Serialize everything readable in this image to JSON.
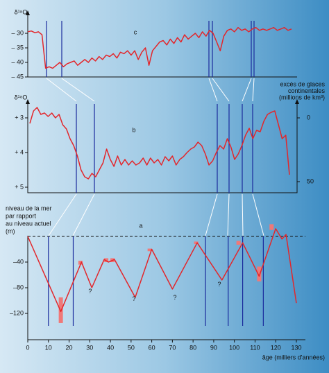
{
  "chart_data": [
    {
      "type": "line",
      "label": "c",
      "ylabel": "δ¹⁸O",
      "color": "#e3262b",
      "ylim": [
        -45,
        -25.7
      ],
      "yticks": [
        {
          "value": -30,
          "label": "– 30"
        },
        {
          "value": -35,
          "label": "– 35"
        },
        {
          "value": -40,
          "label": "– 40"
        },
        {
          "value": -45,
          "label": "– 45"
        }
      ],
      "values": [
        -29.5,
        -29.2,
        -29.8,
        -29.5,
        -30.5,
        -42,
        -41.5,
        -42,
        -41,
        -40,
        -41.5,
        -40.5,
        -40,
        -39.5,
        -41,
        -40,
        -39,
        -40,
        -38.5,
        -39.5,
        -38,
        -39,
        -37.5,
        -38,
        -37,
        -38.5,
        -36.5,
        -37,
        -36,
        -37.5,
        -36,
        -39,
        -36.5,
        -35,
        -41,
        -36,
        -34.5,
        -33,
        -32.5,
        -34,
        -32,
        -33.5,
        -31.5,
        -33,
        -30.5,
        -32,
        -31,
        -30,
        -31.5,
        -29.5,
        -31,
        -29,
        -30,
        -33,
        -36,
        -31,
        -29,
        -28.5,
        -29.5,
        -28,
        -29,
        -28.5,
        -29.5,
        -28.5,
        -28,
        -29,
        -28.5,
        -29,
        -28.5,
        -28,
        -29,
        -28.5,
        -28,
        -29,
        -28.5
      ]
    },
    {
      "type": "line",
      "label": "b",
      "ylabel": "δ¹⁸O",
      "color": "#e3262b",
      "ylim": [
        5.16,
        2.5
      ],
      "yticks": [
        {
          "value": 3,
          "label": "+ 3"
        },
        {
          "value": 4,
          "label": "+ 4"
        },
        {
          "value": 5,
          "label": "+ 5"
        }
      ],
      "y2label": [
        "excès de glaces",
        "continentales",
        "(millions de km³)"
      ],
      "y2lim": [
        58.7,
        -13.6
      ],
      "y2ticks": [
        0,
        50
      ],
      "values": [
        3.16,
        2.8,
        2.7,
        2.9,
        2.86,
        2.96,
        2.86,
        3.0,
        2.9,
        3.2,
        3.32,
        3.6,
        3.8,
        4.1,
        4.5,
        4.7,
        4.76,
        4.6,
        4.7,
        4.5,
        4.3,
        3.9,
        4.2,
        4.4,
        4.1,
        4.36,
        4.2,
        4.36,
        4.24,
        4.36,
        4.3,
        4.16,
        4.36,
        4.16,
        4.3,
        4.2,
        4.36,
        4.12,
        4.24,
        4.1,
        4.36,
        4.2,
        4.12,
        4.0,
        3.9,
        3.84,
        3.7,
        3.8,
        4.04,
        4.36,
        4.24,
        4.0,
        3.8,
        3.9,
        3.6,
        3.84,
        4.2,
        4.04,
        3.8,
        3.5,
        3.3,
        3.6,
        3.36,
        3.4,
        3.1,
        2.9,
        2.84,
        2.8,
        3.2,
        3.6,
        3.5,
        4.64
      ]
    },
    {
      "type": "line",
      "label": "a",
      "ylabel": [
        "niveau de la mer",
        "par rapport",
        "au niveau actuel",
        "(m)"
      ],
      "xlabel": "âge (milliers d'années)",
      "color": "#e3262b",
      "xlim": [
        0,
        130
      ],
      "xticks": [
        0,
        10,
        20,
        30,
        40,
        50,
        60,
        70,
        80,
        90,
        100,
        110,
        120,
        130
      ],
      "ylim": [
        -161,
        22
      ],
      "yticks": [
        {
          "value": -40,
          "label": "–40"
        },
        {
          "value": -80,
          "label": "–80"
        },
        {
          "value": -120,
          "label": "–120"
        }
      ],
      "reference_line": 0,
      "x": [
        0,
        16,
        26,
        31,
        37,
        39,
        42,
        52,
        60,
        70,
        82,
        94,
        104,
        112,
        120,
        123,
        125,
        130
      ],
      "values": [
        0,
        -117,
        -40,
        -80,
        -36,
        -40,
        -36,
        -95,
        -20,
        -82,
        -10,
        -68,
        -10,
        -62,
        12,
        -4,
        3,
        -104
      ],
      "markers": [
        10,
        22,
        86,
        97,
        104,
        114
      ],
      "marker_color": "#1a2a9c",
      "ranges": {
        "color": "#f07878",
        "x": [
          16,
          25.5,
          38,
          41,
          59,
          81.5,
          102,
          112,
          118
        ],
        "low": [
          -135,
          -44,
          -40,
          -40,
          -23,
          -12,
          -13,
          -70,
          10
        ],
        "high": [
          -95,
          -38,
          -34,
          -34,
          -19,
          -8,
          -7,
          -47,
          19
        ]
      },
      "annotations": [
        {
          "text": "?",
          "x": 30.2,
          "y": -86
        },
        {
          "text": "?",
          "x": 51.4,
          "y": -98
        },
        {
          "text": "?",
          "x": 71.2,
          "y": -96
        },
        {
          "text": "?",
          "x": 92.7,
          "y": -75
        }
      ]
    }
  ]
}
